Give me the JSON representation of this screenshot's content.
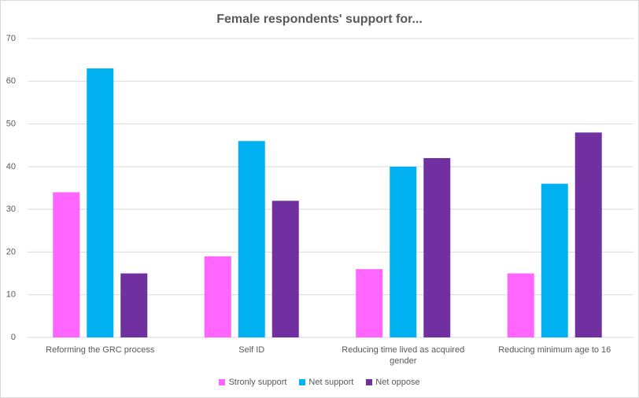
{
  "chart_data": {
    "type": "bar",
    "title": "Female respondents' support for...",
    "categories": [
      "Reforming the GRC process",
      "Self ID",
      "Reducing time lived as acquired gender",
      "Reducing minimum age to 16"
    ],
    "series": [
      {
        "name": "Stronly support",
        "color": "#ff66ff",
        "values": [
          34,
          19,
          16,
          15
        ]
      },
      {
        "name": "Net support",
        "color": "#00b0f0",
        "values": [
          63,
          46,
          40,
          36
        ]
      },
      {
        "name": "Net oppose",
        "color": "#7030a0",
        "values": [
          15,
          32,
          42,
          48
        ]
      }
    ],
    "ylim": [
      0,
      70
    ],
    "yticks": [
      0,
      10,
      20,
      30,
      40,
      50,
      60,
      70
    ],
    "grid": true,
    "legend": "bottom"
  }
}
